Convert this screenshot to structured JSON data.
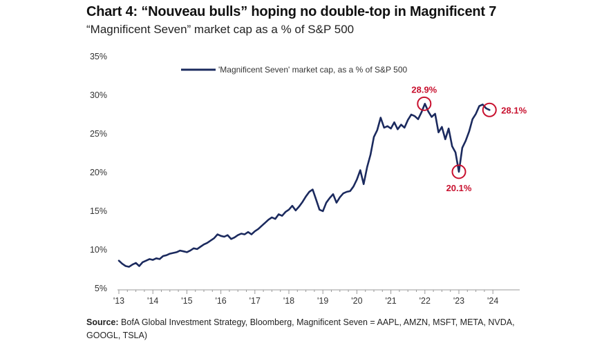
{
  "title": "Chart 4: “Nouveau bulls” hoping no double-top in Magnificent 7",
  "subtitle": "“Magnificent Seven” market cap as a % of S&P 500",
  "source": {
    "label": "Source:",
    "text": "BofA Global Investment Strategy, Bloomberg, Magnificent Seven = AAPL, AMZN, MSFT, META, NVDA, GOOGL, TSLA)"
  },
  "colors": {
    "line": "#1b2a5e",
    "annotation": "#c8102e",
    "axis": "#999999"
  },
  "chart_data": {
    "type": "line",
    "ylim": [
      5,
      35
    ],
    "yticks": [
      5,
      10,
      15,
      20,
      25,
      30,
      35
    ],
    "ytick_labels": [
      "5%",
      "10%",
      "15%",
      "20%",
      "25%",
      "30%",
      "35%"
    ],
    "xlim": [
      2013.0,
      2024.5
    ],
    "xticks": [
      2013,
      2014,
      2015,
      2016,
      2017,
      2018,
      2019,
      2020,
      2021,
      2022,
      2023,
      2024
    ],
    "xtick_labels": [
      "'13",
      "'14",
      "'15",
      "'16",
      "'17",
      "'18",
      "'19",
      "'20",
      "'21",
      "'22",
      "'23",
      "'24"
    ],
    "legend": "top-center",
    "grid": false,
    "series": [
      {
        "name": "'Magnificent Seven' market cap, as a % of S&P 500",
        "x": [
          2013.0,
          2013.1,
          2013.2,
          2013.3,
          2013.4,
          2013.5,
          2013.6,
          2013.7,
          2013.8,
          2013.9,
          2014.0,
          2014.1,
          2014.2,
          2014.3,
          2014.4,
          2014.5,
          2014.6,
          2014.7,
          2014.8,
          2014.9,
          2015.0,
          2015.1,
          2015.2,
          2015.3,
          2015.4,
          2015.5,
          2015.6,
          2015.7,
          2015.8,
          2015.9,
          2016.0,
          2016.1,
          2016.2,
          2016.3,
          2016.4,
          2016.5,
          2016.6,
          2016.7,
          2016.8,
          2016.9,
          2017.0,
          2017.1,
          2017.2,
          2017.3,
          2017.4,
          2017.5,
          2017.6,
          2017.7,
          2017.8,
          2017.9,
          2018.0,
          2018.1,
          2018.2,
          2018.3,
          2018.4,
          2018.5,
          2018.6,
          2018.7,
          2018.8,
          2018.9,
          2019.0,
          2019.1,
          2019.2,
          2019.3,
          2019.4,
          2019.5,
          2019.6,
          2019.7,
          2019.8,
          2019.9,
          2020.0,
          2020.1,
          2020.2,
          2020.3,
          2020.4,
          2020.5,
          2020.6,
          2020.7,
          2020.8,
          2020.9,
          2021.0,
          2021.1,
          2021.2,
          2021.3,
          2021.4,
          2021.5,
          2021.6,
          2021.7,
          2021.8,
          2021.9,
          2022.0,
          2022.1,
          2022.2,
          2022.3,
          2022.4,
          2022.5,
          2022.6,
          2022.7,
          2022.8,
          2022.9,
          2023.0,
          2023.1,
          2023.2,
          2023.3,
          2023.4,
          2023.5,
          2023.6,
          2023.7,
          2023.8,
          2023.9
        ],
        "values": [
          8.6,
          8.2,
          7.9,
          7.8,
          8.1,
          8.3,
          7.9,
          8.4,
          8.6,
          8.8,
          8.7,
          8.9,
          8.8,
          9.2,
          9.3,
          9.5,
          9.6,
          9.7,
          9.9,
          9.8,
          9.7,
          9.9,
          10.2,
          10.1,
          10.4,
          10.7,
          10.9,
          11.2,
          11.5,
          12.0,
          11.8,
          11.7,
          11.9,
          11.4,
          11.6,
          11.9,
          12.1,
          12.0,
          12.3,
          12.0,
          12.4,
          12.7,
          13.1,
          13.5,
          13.9,
          14.2,
          14.0,
          14.6,
          14.4,
          14.9,
          15.2,
          15.7,
          15.1,
          15.6,
          16.2,
          16.9,
          17.5,
          17.8,
          16.5,
          15.2,
          15.0,
          16.1,
          16.7,
          17.2,
          16.1,
          16.8,
          17.3,
          17.5,
          17.6,
          18.2,
          19.1,
          20.3,
          18.5,
          20.7,
          22.3,
          24.6,
          25.5,
          27.1,
          25.8,
          26.0,
          25.7,
          26.5,
          25.6,
          26.2,
          25.8,
          26.8,
          27.5,
          27.3,
          26.9,
          27.8,
          28.9,
          27.9,
          27.2,
          27.6,
          25.2,
          25.9,
          24.3,
          25.7,
          23.4,
          22.6,
          20.1,
          23.2,
          24.1,
          25.3,
          26.9,
          27.6,
          28.6,
          28.8,
          28.3,
          28.1
        ]
      }
    ],
    "annotations": [
      {
        "label": "28.9%",
        "x": 2021.98,
        "y": 28.9,
        "position": "above"
      },
      {
        "label": "20.1%",
        "x": 2023.0,
        "y": 20.1,
        "position": "below"
      },
      {
        "label": "28.1%",
        "x": 2023.9,
        "y": 28.1,
        "position": "right"
      }
    ]
  }
}
